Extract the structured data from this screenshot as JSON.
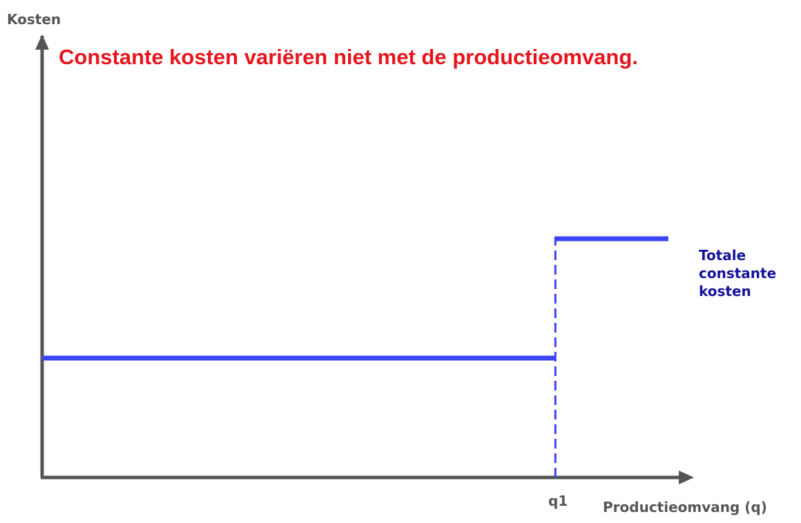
{
  "chart_data": {
    "type": "line",
    "title": "Constante kosten variëren niet met de productieomvang.",
    "ylabel": "Kosten",
    "xlabel": "Productieomvang (q)",
    "x_ticks": [
      "q1"
    ],
    "series": [
      {
        "name": "Totale constante kosten",
        "name_lines": [
          "Totale",
          "constante",
          "kosten"
        ],
        "segments": [
          {
            "x": [
              0,
              1.0
            ],
            "y": [
              1,
              1
            ]
          },
          {
            "x": [
              1.0,
              1.22
            ],
            "y": [
              2,
              2
            ]
          }
        ],
        "step_at": "q1",
        "step_style": "dashed"
      }
    ],
    "xlim": [
      0,
      1.27
    ],
    "ylim": [
      0,
      3.7
    ],
    "grid": false,
    "colors": {
      "title": "#e8141c",
      "series": "#3a45f5",
      "series_label": "#14129a",
      "axes": "#555555"
    }
  }
}
